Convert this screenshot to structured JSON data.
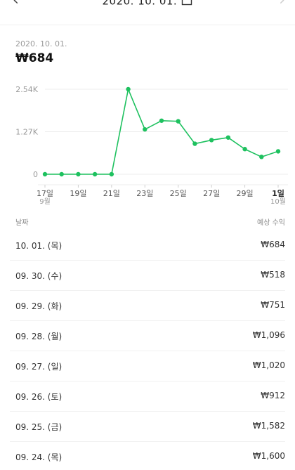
{
  "header": {
    "title": "2020. 10. 01.",
    "prev_icon": "chevron-left-icon",
    "next_icon": "chevron-right-icon",
    "calendar_icon": "calendar-icon"
  },
  "summary": {
    "date": "2020. 10. 01.",
    "amount": "₩684"
  },
  "chart_data": {
    "type": "line",
    "color": "#1ec15f",
    "y_ticks": [
      "2.54K",
      "1.27K",
      "0"
    ],
    "y_tick_values": [
      2540,
      1270,
      0
    ],
    "ylim": [
      0,
      2540
    ],
    "x_ticks": [
      {
        "day": 17,
        "label": "17일",
        "sub": "9월"
      },
      {
        "day": 19,
        "label": "19일",
        "sub": ""
      },
      {
        "day": 21,
        "label": "21일",
        "sub": ""
      },
      {
        "day": 23,
        "label": "23일",
        "sub": ""
      },
      {
        "day": 25,
        "label": "25일",
        "sub": ""
      },
      {
        "day": 27,
        "label": "27일",
        "sub": ""
      },
      {
        "day": 29,
        "label": "29일",
        "sub": ""
      },
      {
        "day": 31,
        "label": "1일",
        "sub": "10월"
      }
    ],
    "x": [
      "09.17",
      "09.18",
      "09.19",
      "09.20",
      "09.21",
      "09.22",
      "09.23",
      "09.24",
      "09.25",
      "09.26",
      "09.27",
      "09.28",
      "09.29",
      "09.30",
      "10.01"
    ],
    "x_day": [
      17,
      18,
      19,
      20,
      21,
      22,
      23,
      24,
      25,
      26,
      27,
      28,
      29,
      30,
      31
    ],
    "values": [
      0,
      0,
      0,
      0,
      0,
      2540,
      1340,
      1600,
      1582,
      912,
      1020,
      1096,
      751,
      518,
      684
    ],
    "grid": true
  },
  "list": {
    "col_date": "날짜",
    "col_amount": "예상 수익",
    "rows": [
      {
        "date": "10. 01. (목)",
        "amount": "₩684"
      },
      {
        "date": "09. 30. (수)",
        "amount": "₩518"
      },
      {
        "date": "09. 29. (화)",
        "amount": "₩751"
      },
      {
        "date": "09. 28. (월)",
        "amount": "₩1,096"
      },
      {
        "date": "09. 27. (일)",
        "amount": "₩1,020"
      },
      {
        "date": "09. 26. (토)",
        "amount": "₩912"
      },
      {
        "date": "09. 25. (금)",
        "amount": "₩1,582"
      },
      {
        "date": "09. 24. (목)",
        "amount": "₩1,600"
      }
    ]
  }
}
